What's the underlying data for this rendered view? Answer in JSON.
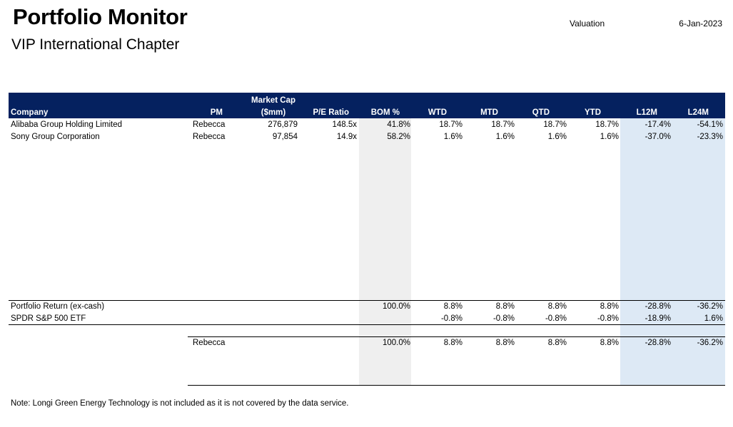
{
  "title": "Portfolio Monitor",
  "subtitle": "VIP International Chapter",
  "meta": {
    "label": "Valuation",
    "date": "6-Jan-2023"
  },
  "colors": {
    "header_bg": "#05215f",
    "grey_shade": "#efefef",
    "blue_shade": "#dde9f5"
  },
  "columns": {
    "company": "Company",
    "pm": "PM",
    "mktcap_1": "Market Cap",
    "mktcap_2": "($mm)",
    "pe": "P/E Ratio",
    "bom": "BOM %",
    "wtd": "WTD",
    "mtd": "MTD",
    "qtd": "QTD",
    "ytd": "YTD",
    "l12m": "L12M",
    "l24m": "L24M"
  },
  "rows": [
    {
      "company": "Alibaba Group Holding Limited",
      "pm": "Rebecca",
      "mktcap": "276,879",
      "pe": "148.5x",
      "bom": "41.8%",
      "wtd": "18.7%",
      "mtd": "18.7%",
      "qtd": "18.7%",
      "ytd": "18.7%",
      "l12m": "-17.4%",
      "l24m": "-54.1%"
    },
    {
      "company": "Sony Group Corporation",
      "pm": "Rebecca",
      "mktcap": "97,854",
      "pe": "14.9x",
      "bom": "58.2%",
      "wtd": "1.6%",
      "mtd": "1.6%",
      "qtd": "1.6%",
      "ytd": "1.6%",
      "l12m": "-37.0%",
      "l24m": "-23.3%"
    }
  ],
  "portfolio": {
    "label": "Portfolio Return (ex-cash)",
    "bom": "100.0%",
    "wtd": "8.8%",
    "mtd": "8.8%",
    "qtd": "8.8%",
    "ytd": "8.8%",
    "l12m": "-28.8%",
    "l24m": "-36.2%"
  },
  "benchmark": {
    "label": "SPDR S&P 500 ETF",
    "wtd": "-0.8%",
    "mtd": "-0.8%",
    "qtd": "-0.8%",
    "ytd": "-0.8%",
    "l12m": "-18.9%",
    "l24m": "1.6%"
  },
  "pm_summary": {
    "pm": "Rebecca",
    "bom": "100.0%",
    "wtd": "8.8%",
    "mtd": "8.8%",
    "qtd": "8.8%",
    "ytd": "8.8%",
    "l12m": "-28.8%",
    "l24m": "-36.2%"
  },
  "note": "Note: Longi Green Energy Technology is not included as it is not covered by the data service."
}
